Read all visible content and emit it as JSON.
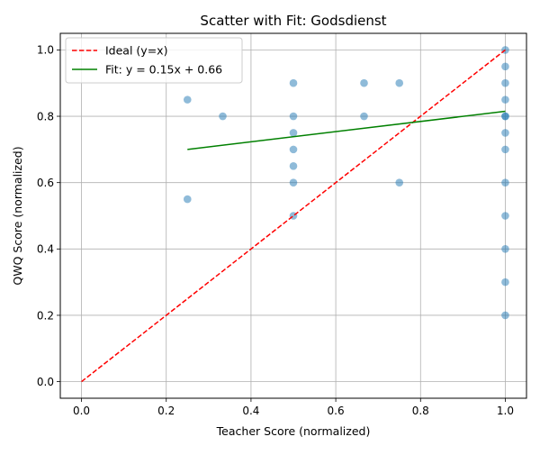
{
  "chart_data": {
    "type": "scatter",
    "title": "Scatter with Fit: Godsdienst",
    "xlabel": "Teacher Score (normalized)",
    "ylabel": "QWQ Score (normalized)",
    "xlim": [
      -0.05,
      1.05
    ],
    "ylim": [
      -0.05,
      1.05
    ],
    "xticks": [
      "0.0",
      "0.2",
      "0.4",
      "0.6",
      "0.8",
      "1.0"
    ],
    "yticks": [
      "0.0",
      "0.2",
      "0.4",
      "0.6",
      "0.8",
      "1.0"
    ],
    "grid": true,
    "legend_position": "upper-left",
    "points": {
      "color": "#1f77b4",
      "x": [
        0.25,
        0.25,
        0.3333,
        0.5,
        0.5,
        0.5,
        0.5,
        0.5,
        0.5,
        0.5,
        0.6667,
        0.6667,
        0.75,
        0.75,
        1.0,
        1.0,
        1.0,
        1.0,
        1.0,
        1.0,
        1.0,
        1.0,
        1.0,
        1.0,
        1.0,
        1.0,
        1.0
      ],
      "y": [
        0.85,
        0.55,
        0.8,
        0.9,
        0.8,
        0.75,
        0.7,
        0.65,
        0.6,
        0.5,
        0.9,
        0.8,
        0.9,
        0.6,
        1.0,
        0.95,
        0.9,
        0.85,
        0.8,
        0.75,
        0.7,
        0.6,
        0.5,
        0.4,
        0.3,
        0.2,
        0.8
      ]
    },
    "series": [
      {
        "name": "Ideal (y=x)",
        "color": "#ff0000",
        "style": "dashed",
        "x": [
          0.0,
          1.0
        ],
        "y": [
          0.0,
          1.0
        ]
      },
      {
        "name": "Fit: y = 0.15x + 0.66",
        "color": "#008000",
        "style": "solid",
        "x": [
          0.25,
          1.0
        ],
        "y": [
          0.7,
          0.815
        ]
      }
    ]
  }
}
